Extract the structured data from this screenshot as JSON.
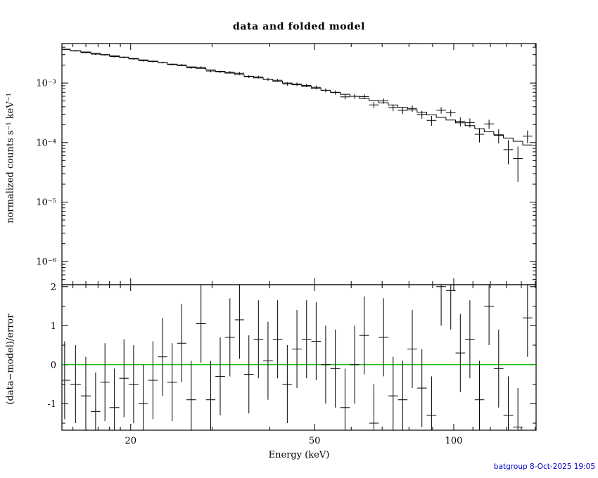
{
  "title": "data and folded model",
  "footer": {
    "text": "batgroup  8-Oct-2025 19:05",
    "color": "#0000cc"
  },
  "chart_data": {
    "type": "line",
    "subtype": "xspec-spectrum-with-residuals",
    "title": "data and folded model",
    "x_label": "Energy (keV)",
    "x_scale": "log",
    "x_range": [
      14.2,
      150.7
    ],
    "x_ticks": [
      20,
      50,
      100
    ],
    "x_minor_ticks": [
      15,
      16,
      17,
      18,
      19,
      30,
      40,
      60,
      70,
      80,
      90,
      110,
      120,
      130,
      140,
      150
    ],
    "top_panel": {
      "y_label": "normalized counts s⁻¹ keV⁻¹",
      "y_scale": "log",
      "y_range": [
        4.1e-07,
        0.0046
      ],
      "y_ticks": [
        0.001,
        0.0001,
        1e-05,
        1e-06
      ],
      "y_tick_labels": [
        "10⁻³",
        "10⁻⁴",
        "10⁻⁵",
        "10⁻⁶"
      ],
      "grid": false
    },
    "bottom_panel": {
      "y_label": "(data−model)/error",
      "y_scale": "linear",
      "y_range": [
        -1.68,
        2.05
      ],
      "y_ticks": [
        2,
        1,
        0,
        -1
      ],
      "zero_line_color": "#00b400",
      "residual_error_half_width": 1
    },
    "line_color": "#000000",
    "bins": {
      "edges_kev": [
        14.0,
        14.8,
        15.6,
        16.4,
        17.2,
        18.0,
        18.9,
        19.8,
        20.8,
        21.8,
        22.9,
        24.0,
        25.2,
        26.4,
        27.7,
        29.1,
        30.5,
        32.0,
        33.6,
        35.2,
        36.9,
        38.7,
        40.6,
        42.6,
        44.7,
        46.9,
        49.2,
        51.6,
        54.1,
        56.8,
        59.6,
        62.5,
        65.6,
        68.8,
        72.2,
        75.7,
        79.4,
        83.3,
        87.4,
        91.7,
        96.2,
        100.9,
        105.8,
        111.0,
        116.4,
        122.1,
        128.1,
        134.4,
        141.0,
        147.9
      ],
      "model": [
        0.0037,
        0.0035,
        0.00332,
        0.00316,
        0.00301,
        0.00287,
        0.00273,
        0.00258,
        0.00245,
        0.00233,
        0.0022,
        0.00208,
        0.00197,
        0.00187,
        0.00176,
        0.00166,
        0.00157,
        0.00147,
        0.00138,
        0.0013,
        0.00122,
        0.00115,
        0.00107,
        0.001,
        0.000936,
        0.000873,
        0.000811,
        0.000756,
        0.0007,
        0.000647,
        0.000598,
        0.000552,
        0.000507,
        0.000465,
        0.000427,
        0.000391,
        0.000356,
        0.000324,
        0.000293,
        0.000265,
        0.000239,
        0.000215,
        0.000192,
        0.000171,
        0.000152,
        0.000135,
        0.000119,
        0.000105,
        9.1e-05
      ],
      "error": [
        9.3e-05,
        8.8e-05,
        8.6e-05,
        8.5e-05,
        8.4e-05,
        8.3e-05,
        8.2e-05,
        8e-05,
        7.8e-05,
        7.9e-05,
        7.7e-05,
        7.7e-05,
        7.5e-05,
        7.5e-05,
        7.4e-05,
        7.3e-05,
        7.2e-05,
        7.1e-05,
        6.9e-05,
        6.9e-05,
        6.7e-05,
        6.7e-05,
        6.5e-05,
        6.4e-05,
        6.3e-05,
        6.1e-05,
        6e-05,
        5.9e-05,
        5.7e-05,
        5.6e-05,
        5.5e-05,
        5.4e-05,
        5.2e-05,
        5.1e-05,
        5e-05,
        4.8e-05,
        4.7e-05,
        4.5e-05,
        4.4e-05,
        4.2e-05,
        4.1e-05,
        4e-05,
        3.8e-05,
        3.7e-05,
        3.6e-05,
        3.5e-05,
        3.3e-05,
        3.2e-05,
        3.1e-05
      ],
      "delchi": [
        -0.4,
        -0.5,
        -0.8,
        -1.2,
        -0.45,
        -1.1,
        -0.35,
        -0.5,
        -1.0,
        -0.4,
        0.2,
        -0.45,
        0.55,
        -0.9,
        1.05,
        -0.9,
        -0.3,
        0.7,
        1.15,
        -0.25,
        0.65,
        0.1,
        0.65,
        -0.5,
        0.4,
        0.65,
        0.6,
        0.0,
        -0.1,
        -1.1,
        0.0,
        0.75,
        -1.5,
        0.7,
        -0.8,
        -0.9,
        0.4,
        -0.6,
        -1.3,
        2.0,
        1.9,
        0.3,
        0.65,
        -0.9,
        1.5,
        -0.1,
        -1.3,
        -1.6,
        1.2
      ]
    }
  }
}
